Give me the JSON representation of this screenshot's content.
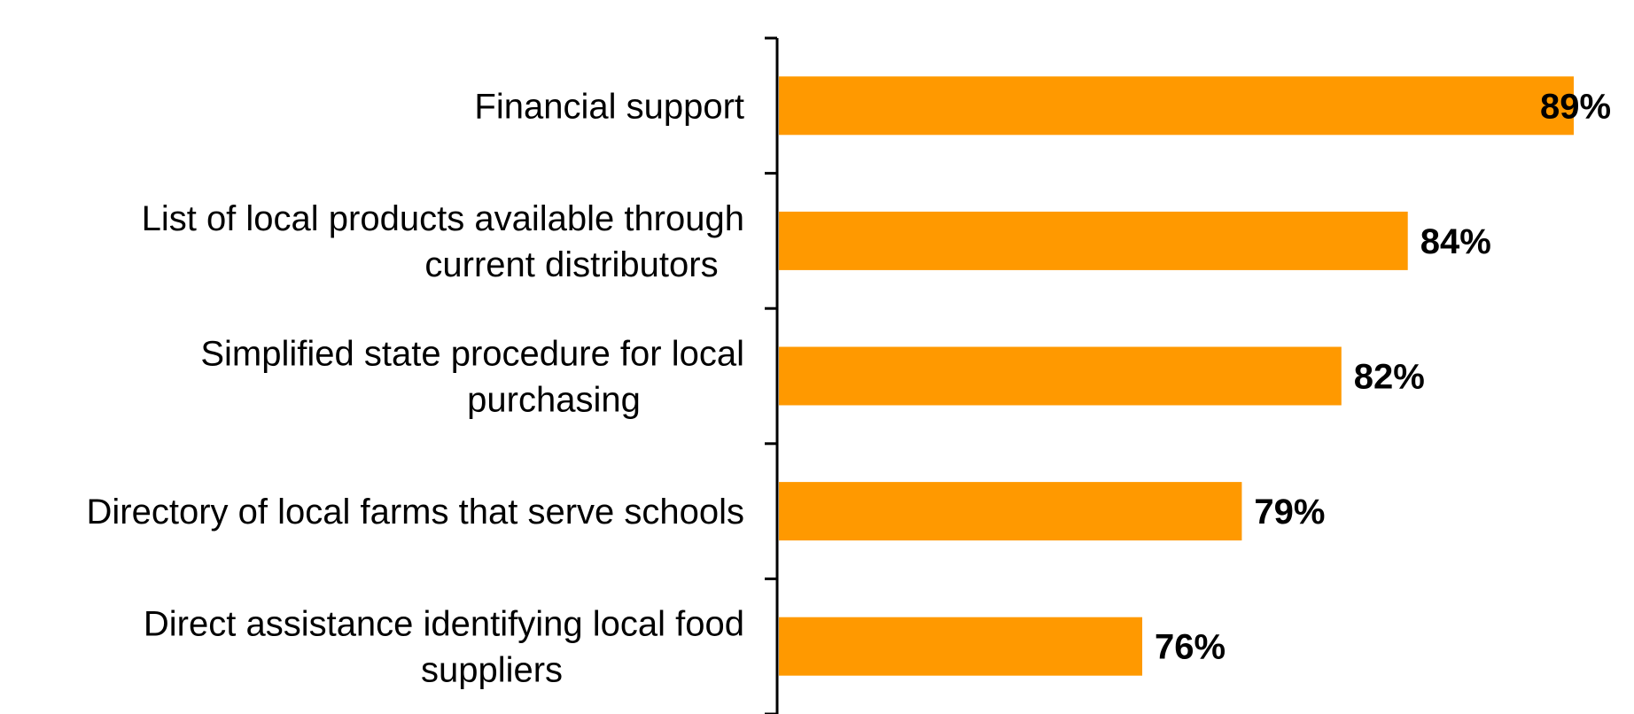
{
  "chart_data": {
    "type": "bar",
    "orientation": "horizontal",
    "categories": [
      "Financial support",
      "List of local products available through current distributors",
      "Simplified state procedure for local purchasing",
      "Directory of local farms that serve schools",
      "Direct assistance identifying local food suppliers"
    ],
    "category_label_lines": [
      [
        "Financial support"
      ],
      [
        "List of local products available through",
        "current distributors"
      ],
      [
        "Simplified state procedure for local",
        "purchasing"
      ],
      [
        "Directory of local farms that serve schools"
      ],
      [
        "Direct assistance identifying local food",
        "suppliers"
      ]
    ],
    "values": [
      89,
      84,
      82,
      79,
      76
    ],
    "value_labels": [
      "89%",
      "84%",
      "82%",
      "79%",
      "76%"
    ],
    "unit": "%",
    "xlim": [
      65,
      89
    ],
    "title": "",
    "xlabel": "",
    "ylabel": "",
    "bar_color": "#ff9900",
    "axis_color": "#000000",
    "grid": false,
    "legend": "none"
  }
}
